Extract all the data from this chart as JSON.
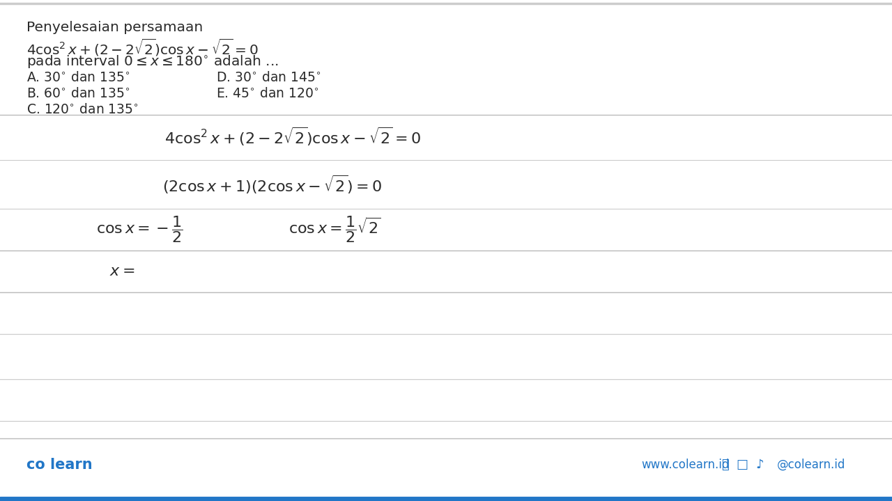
{
  "bg_color": "#ffffff",
  "text_color": "#2a2a2a",
  "light_gray": "#c8c8c8",
  "footer_blue": "#2176c7",
  "footer_bar_blue": "#2176c7",
  "title": "Penyelesaian persamaan",
  "eq_line": "$4\\cos^2x+(2-2\\sqrt{2})\\cos x-\\sqrt{2}=0$",
  "interval_line": "pada interval $0\\leq x\\leq 180^{\\circ}$ adalah ...",
  "opt_A": "A. $30^{\\circ}$ dan $135^{\\circ}$",
  "opt_D": "D. $30^{\\circ}$ dan $145^{\\circ}$",
  "opt_B": "B. $60^{\\circ}$ dan $135^{\\circ}$",
  "opt_E": "E. $45^{\\circ}$ dan $120^{\\circ}$",
  "opt_C": "C. $120^{\\circ}$ dan $135^{\\circ}$",
  "hw1": "$4\\cos^2 x + (2 - 2\\sqrt{2})\\cos x - \\sqrt{2} = 0$",
  "hw2": "$(2\\cos x + 1)(2\\cos x - \\sqrt{2}) = 0$",
  "hw3a": "$\\cos x = -\\dfrac{1}{2}$",
  "hw3b": "$\\cos x = \\dfrac{1}{2}\\sqrt{2}$",
  "hw4": "$x = $",
  "footer_left": "co learn",
  "footer_url": "www.colearn.id",
  "footer_handle": "@colearn.id",
  "fs_title": 14.5,
  "fs_eq": 14.5,
  "fs_opt": 13.5,
  "fs_hw": 16,
  "fs_footer": 12
}
